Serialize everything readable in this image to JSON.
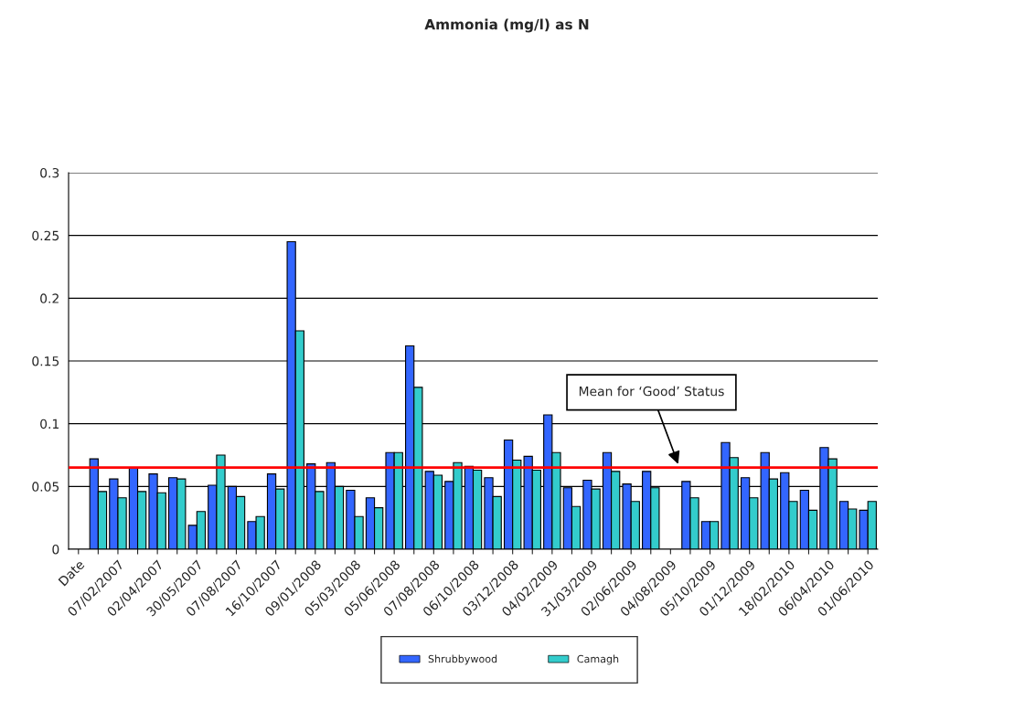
{
  "chart_data": {
    "type": "bar",
    "title": "Ammonia (mg/l) as N",
    "categories": [
      "Date",
      null,
      "07/02/2007",
      null,
      "02/04/2007",
      null,
      "30/05/2007",
      null,
      "07/08/2007",
      null,
      "16/10/2007",
      null,
      "09/01/2008",
      null,
      "05/03/2008",
      null,
      "05/06/2008",
      null,
      "07/08/2008",
      null,
      "06/10/2008",
      null,
      "03/12/2008",
      null,
      "04/02/2009",
      null,
      "31/03/2009",
      null,
      "02/06/2009",
      null,
      "04/08/2009",
      null,
      "05/10/2009",
      null,
      "01/12/2009",
      null,
      "18/02/2010",
      null,
      "06/04/2010",
      null,
      "01/06/2010"
    ],
    "series": [
      {
        "name": "Shrubbywood",
        "color": "#3366ff",
        "values": [
          null,
          0.072,
          0.056,
          0.065,
          0.06,
          0.057,
          0.019,
          0.051,
          0.05,
          0.022,
          0.06,
          0.245,
          0.068,
          0.069,
          0.047,
          0.041,
          0.077,
          0.162,
          0.062,
          0.054,
          0.066,
          0.057,
          0.087,
          0.074,
          0.107,
          0.049,
          0.055,
          0.077,
          0.052,
          0.062,
          null,
          0.054,
          0.022,
          0.085,
          0.057,
          0.077,
          0.061,
          0.047,
          0.081,
          0.038,
          0.031
        ]
      },
      {
        "name": "Camagh",
        "color": "#33cccc",
        "values": [
          null,
          0.046,
          0.041,
          0.046,
          0.045,
          0.056,
          0.03,
          0.075,
          0.042,
          0.026,
          0.048,
          0.174,
          0.046,
          0.05,
          0.026,
          0.033,
          0.077,
          0.129,
          0.059,
          0.069,
          0.063,
          0.042,
          0.071,
          0.063,
          0.077,
          0.034,
          0.048,
          0.062,
          0.038,
          0.049,
          null,
          0.041,
          0.022,
          0.073,
          0.041,
          0.056,
          0.038,
          0.031,
          0.072,
          0.032,
          0.038
        ]
      }
    ],
    "ylim": [
      0,
      0.3
    ],
    "yticks": [
      0,
      0.05,
      0.1,
      0.15,
      0.2,
      0.25,
      0.3
    ],
    "grid": "y",
    "legend": "bottom",
    "ref_lines": [
      {
        "axis": "y",
        "value": 0.065,
        "label": "Mean for ‘Good’ Status",
        "color": "#ff0000"
      }
    ]
  }
}
